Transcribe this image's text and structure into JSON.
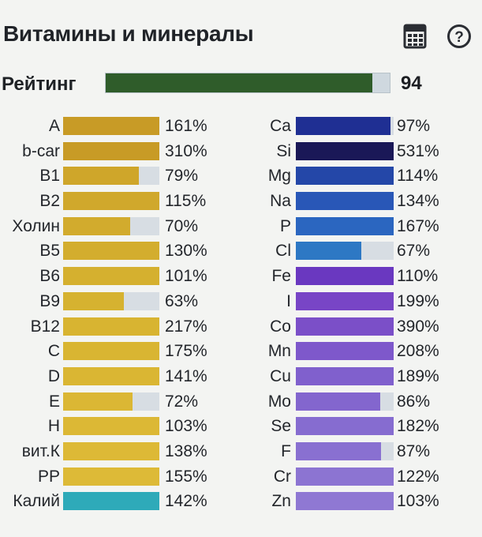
{
  "header": {
    "title": "Витамины и минералы",
    "icons": [
      "calculator-icon",
      "help-icon"
    ]
  },
  "rating": {
    "label": "Рейтинг",
    "value": "94",
    "fill_fraction": 0.94,
    "color": "#2f5c2a"
  },
  "vitamins": [
    {
      "label": "A",
      "value": "161%",
      "fill": 1.0,
      "color": "#c89b26"
    },
    {
      "label": "b-car",
      "value": "310%",
      "fill": 1.0,
      "color": "#c89b26"
    },
    {
      "label": "B1",
      "value": "79%",
      "fill": 0.79,
      "color": "#cfa62a"
    },
    {
      "label": "B2",
      "value": "115%",
      "fill": 1.0,
      "color": "#d0a82c"
    },
    {
      "label": "Холин",
      "value": "70%",
      "fill": 0.7,
      "color": "#d2ab2d"
    },
    {
      "label": "B5",
      "value": "130%",
      "fill": 1.0,
      "color": "#d3ad2e"
    },
    {
      "label": "B6",
      "value": "101%",
      "fill": 1.0,
      "color": "#d5b02f"
    },
    {
      "label": "B9",
      "value": "63%",
      "fill": 0.63,
      "color": "#d6b230"
    },
    {
      "label": "B12",
      "value": "217%",
      "fill": 1.0,
      "color": "#d8b431"
    },
    {
      "label": "C",
      "value": "175%",
      "fill": 1.0,
      "color": "#d9b532"
    },
    {
      "label": "D",
      "value": "141%",
      "fill": 1.0,
      "color": "#dab633"
    },
    {
      "label": "E",
      "value": "72%",
      "fill": 0.72,
      "color": "#dbb734"
    },
    {
      "label": "H",
      "value": "103%",
      "fill": 1.0,
      "color": "#dcb835"
    },
    {
      "label": "вит.К",
      "value": "138%",
      "fill": 1.0,
      "color": "#ddb936"
    },
    {
      "label": "PP",
      "value": "155%",
      "fill": 1.0,
      "color": "#ddba37"
    },
    {
      "label": "Калий",
      "value": "142%",
      "fill": 1.0,
      "color": "#2eaab9"
    }
  ],
  "minerals": [
    {
      "label": "Ca",
      "value": "97%",
      "fill": 0.97,
      "color": "#1f2f93"
    },
    {
      "label": "Si",
      "value": "531%",
      "fill": 1.0,
      "color": "#1a1857"
    },
    {
      "label": "Mg",
      "value": "114%",
      "fill": 1.0,
      "color": "#2447a8"
    },
    {
      "label": "Na",
      "value": "134%",
      "fill": 1.0,
      "color": "#2957b7"
    },
    {
      "label": "P",
      "value": "167%",
      "fill": 1.0,
      "color": "#2b66c0"
    },
    {
      "label": "Cl",
      "value": "67%",
      "fill": 0.67,
      "color": "#2d78c4"
    },
    {
      "label": "Fe",
      "value": "110%",
      "fill": 1.0,
      "color": "#6a38c0"
    },
    {
      "label": "I",
      "value": "199%",
      "fill": 1.0,
      "color": "#7845c6"
    },
    {
      "label": "Co",
      "value": "390%",
      "fill": 1.0,
      "color": "#7b4fc8"
    },
    {
      "label": "Mn",
      "value": "208%",
      "fill": 1.0,
      "color": "#7e58cb"
    },
    {
      "label": "Cu",
      "value": "189%",
      "fill": 1.0,
      "color": "#8060cd"
    },
    {
      "label": "Mo",
      "value": "86%",
      "fill": 0.86,
      "color": "#8366ce"
    },
    {
      "label": "Se",
      "value": "182%",
      "fill": 1.0,
      "color": "#866cd0"
    },
    {
      "label": "F",
      "value": "87%",
      "fill": 0.87,
      "color": "#8970d1"
    },
    {
      "label": "Cr",
      "value": "122%",
      "fill": 1.0,
      "color": "#8c74d2"
    },
    {
      "label": "Zn",
      "value": "103%",
      "fill": 1.0,
      "color": "#8f78d3"
    }
  ]
}
